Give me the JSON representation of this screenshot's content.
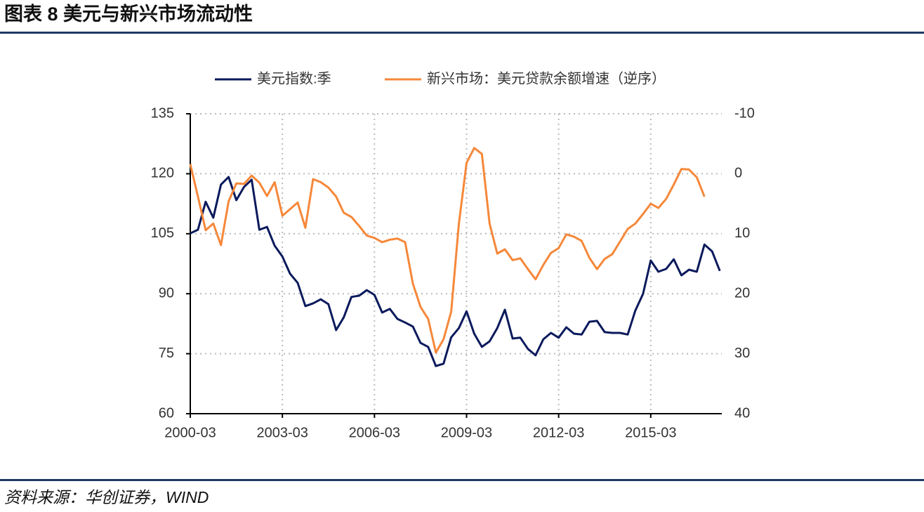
{
  "chart_data": {
    "type": "line",
    "title": "图表 8 美元与新兴市场流动性",
    "source": "资料来源：华创证券，WIND",
    "categories": [
      "2000-03",
      null,
      null,
      null,
      null,
      null,
      null,
      null,
      null,
      null,
      null,
      null,
      "2003-03",
      null,
      null,
      null,
      null,
      null,
      null,
      null,
      null,
      null,
      null,
      null,
      "2006-03",
      null,
      null,
      null,
      null,
      null,
      null,
      null,
      null,
      null,
      null,
      null,
      "2009-03",
      null,
      null,
      null,
      null,
      null,
      null,
      null,
      null,
      null,
      null,
      null,
      "2012-03",
      null,
      null,
      null,
      null,
      null,
      null,
      null,
      null,
      null,
      null,
      null,
      "2015-03",
      null,
      null,
      null,
      null,
      null,
      null,
      null,
      null,
      null
    ],
    "series": [
      {
        "name": "美元指数:季",
        "color": "#0b1a5c",
        "values": [
          105.1,
          106,
          113,
          109,
          117.3,
          119.2,
          113.4,
          116.7,
          118.5,
          106,
          106.7,
          102,
          99.3,
          95,
          92.7,
          86.9,
          87.6,
          88.6,
          87.4,
          80.9,
          84.1,
          89.2,
          89.5,
          90.9,
          89.7,
          85.3,
          86.2,
          83.7,
          82.8,
          81.8,
          77.7,
          76.7,
          71.9,
          72.5,
          79.1,
          81.4,
          85.6,
          80,
          76.7,
          78.1,
          81.4,
          86,
          78.8,
          79,
          76.2,
          74.6,
          78.6,
          80.2,
          79,
          81.6,
          80,
          79.8,
          83,
          83.2,
          80.4,
          80.2,
          80.2,
          79.8,
          85.8,
          90,
          98.3,
          95.5,
          96.2,
          98.6,
          94.6,
          96,
          95.5,
          102.3,
          100.6,
          95.7
        ]
      },
      {
        "name": "新兴市场：美元贷款余额增速（逆序）",
        "color": "#f5883a",
        "axis": "y2",
        "values": [
          -1.6,
          3.8,
          9.4,
          8.3,
          11.9,
          4.6,
          1.6,
          1.7,
          0.3,
          1.5,
          3.7,
          1.4,
          7,
          5.9,
          4.8,
          9,
          0.9,
          1.4,
          2.3,
          3.8,
          6.5,
          7.2,
          8.7,
          10.3,
          10.7,
          11.4,
          11,
          10.8,
          11.4,
          18.3,
          22.2,
          24.2,
          29.8,
          27.6,
          23,
          8.4,
          -1.8,
          -4.3,
          -3.3,
          8.3,
          13.3,
          12.6,
          14.4,
          14.1,
          15.9,
          17.6,
          15.2,
          13.2,
          12.4,
          10.1,
          10.5,
          11.2,
          14,
          15.9,
          14.2,
          13.4,
          11.3,
          9.2,
          8.3,
          6.7,
          5,
          5.7,
          4.2,
          1.8,
          -0.8,
          -0.7,
          0.6,
          3.8,
          null,
          null
        ]
      }
    ],
    "ylim": [
      60,
      135
    ],
    "yticks": [
      60,
      75,
      90,
      105,
      120,
      135
    ],
    "y2lim": [
      40,
      -10
    ],
    "y2ticks": [
      -10,
      0,
      10,
      20,
      30,
      40
    ],
    "grid": true
  }
}
